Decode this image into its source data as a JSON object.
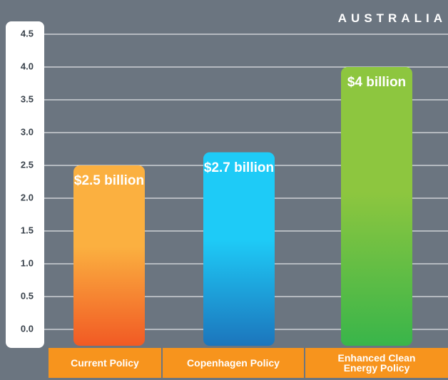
{
  "chart_data": {
    "type": "bar",
    "title": "AUSTRALIA",
    "categories": [
      "Current Policy",
      "Copenhagen Policy",
      "Enhanced Clean Energy Policy"
    ],
    "values": [
      2.5,
      2.7,
      4
    ],
    "value_labels": [
      "$2.5 billion",
      "$2.7 billion",
      "$4 billion"
    ],
    "gradients": [
      [
        "#fbb040",
        "#f15a24"
      ],
      [
        "#1ecbf7",
        "#1c75bc"
      ],
      [
        "#8dc63f",
        "#39b54a"
      ]
    ],
    "ylim": [
      0,
      4.5
    ],
    "yticks": [
      {
        "value": 0,
        "label": "0.0"
      },
      0.5,
      {
        "value": 1,
        "label": "1.0"
      },
      1.5,
      {
        "value": 2,
        "label": "2.0"
      },
      2.5,
      {
        "value": 3,
        "label": "3.0"
      },
      3.5,
      {
        "value": 4,
        "label": "4.0"
      },
      4.5
    ],
    "grid": true
  }
}
